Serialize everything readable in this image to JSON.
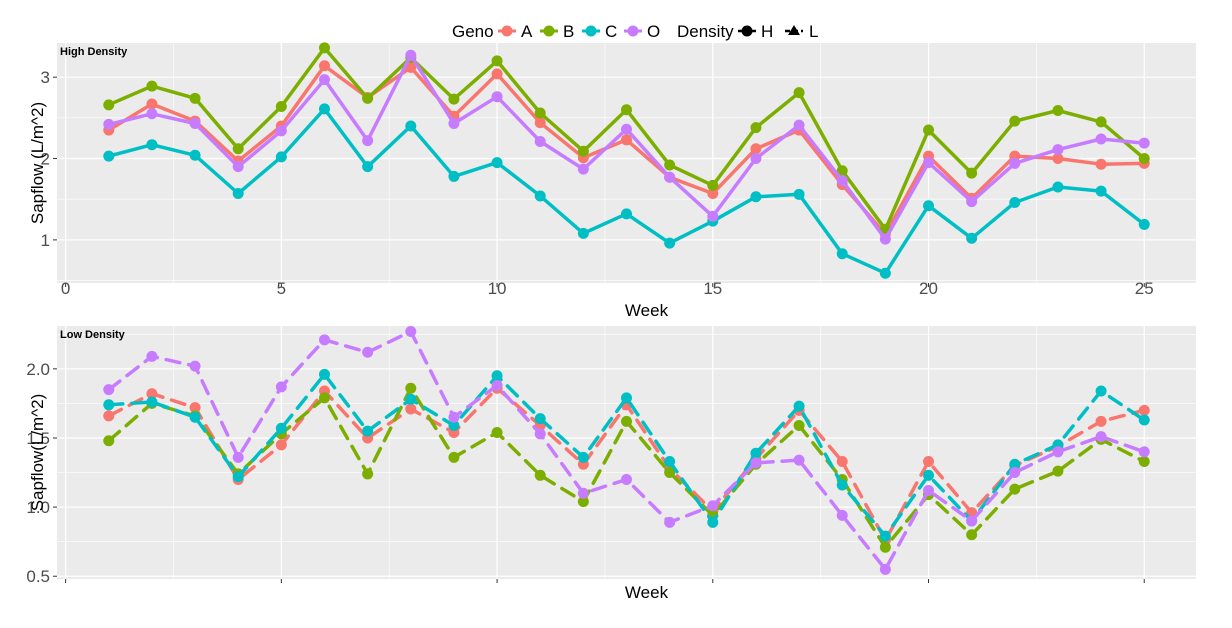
{
  "legend": {
    "geno_title": "Geno",
    "density_title": "Density",
    "items": [
      {
        "key": "A",
        "label": "A",
        "color": "#F8766D"
      },
      {
        "key": "B",
        "label": "B",
        "color": "#7CAE00"
      },
      {
        "key": "C",
        "label": "C",
        "color": "#00BFC4"
      },
      {
        "key": "O",
        "label": "O",
        "color": "#C77CFF"
      }
    ],
    "density_items": [
      {
        "label": "H",
        "linetype": "solid",
        "shape": "circle"
      },
      {
        "label": "L",
        "linetype": "dashed",
        "shape": "triangle"
      }
    ]
  },
  "chart_data": [
    {
      "type": "line",
      "title": "High Density",
      "xlabel": "Week",
      "ylabel": "Sapflow (L/m^2)",
      "xlim": [
        -0.2,
        26.2
      ],
      "ylim": [
        0.47,
        3.42
      ],
      "x_ticks": [
        0,
        5,
        10,
        15,
        20,
        25
      ],
      "y_ticks": [
        1,
        2,
        3
      ],
      "grid": true,
      "linetype": "solid",
      "x": [
        1,
        2,
        3,
        4,
        5,
        6,
        7,
        8,
        9,
        10,
        11,
        12,
        13,
        14,
        15,
        16,
        17,
        18,
        19,
        20,
        21,
        22,
        23,
        24,
        25
      ],
      "series": [
        {
          "name": "A",
          "color": "#F8766D",
          "values": [
            2.35,
            2.67,
            2.46,
            1.97,
            2.4,
            3.14,
            2.75,
            3.12,
            2.52,
            3.04,
            2.44,
            2.01,
            2.23,
            1.77,
            1.57,
            2.12,
            2.35,
            1.68,
            1.07,
            2.03,
            1.51,
            2.03,
            2.0,
            1.93,
            1.94
          ]
        },
        {
          "name": "B",
          "color": "#7CAE00",
          "values": [
            2.66,
            2.89,
            2.74,
            2.12,
            2.64,
            3.36,
            2.74,
            3.24,
            2.73,
            3.2,
            2.56,
            2.09,
            2.6,
            1.92,
            1.67,
            2.38,
            2.81,
            1.85,
            1.13,
            2.35,
            1.82,
            2.46,
            2.59,
            2.45,
            2.0
          ]
        },
        {
          "name": "C",
          "color": "#00BFC4",
          "values": [
            2.03,
            2.17,
            2.04,
            1.57,
            2.02,
            2.61,
            1.9,
            2.4,
            1.78,
            1.95,
            1.54,
            1.08,
            1.32,
            0.96,
            1.23,
            1.53,
            1.56,
            0.83,
            0.59,
            1.42,
            1.02,
            1.46,
            1.65,
            1.6,
            1.19
          ]
        },
        {
          "name": "O",
          "color": "#C77CFF",
          "values": [
            2.42,
            2.55,
            2.43,
            1.9,
            2.34,
            2.97,
            2.22,
            3.27,
            2.43,
            2.76,
            2.21,
            1.87,
            2.36,
            1.77,
            1.29,
            2.0,
            2.41,
            1.73,
            1.01,
            1.95,
            1.47,
            1.94,
            2.11,
            2.24,
            2.19
          ]
        }
      ]
    },
    {
      "type": "line",
      "title": "Low Density",
      "xlabel": "Week",
      "ylabel": "Sapflow(L/m^2)",
      "xlim": [
        -0.2,
        26.2
      ],
      "ylim": [
        0.48,
        2.31
      ],
      "x_ticks": [
        0,
        5,
        10,
        15,
        20,
        25
      ],
      "x_ticks_labeled": false,
      "y_ticks": [
        0.5,
        1.0,
        1.5,
        2.0
      ],
      "y_tick_labels": [
        "0.5",
        "1.0",
        "1.5",
        "2.0"
      ],
      "grid": true,
      "linetype": "dashed",
      "x": [
        1,
        2,
        3,
        4,
        5,
        6,
        7,
        8,
        9,
        10,
        11,
        12,
        13,
        14,
        15,
        16,
        17,
        18,
        19,
        20,
        21,
        22,
        23,
        24,
        25
      ],
      "series": [
        {
          "name": "A",
          "color": "#F8766D",
          "values": [
            1.66,
            1.82,
            1.72,
            1.2,
            1.45,
            1.84,
            1.5,
            1.71,
            1.54,
            1.86,
            1.59,
            1.31,
            1.74,
            1.28,
            0.97,
            1.35,
            1.7,
            1.33,
            0.76,
            1.33,
            0.96,
            1.3,
            1.44,
            1.62,
            1.7
          ]
        },
        {
          "name": "B",
          "color": "#7CAE00",
          "values": [
            1.48,
            1.75,
            1.66,
            1.24,
            1.53,
            1.79,
            1.24,
            1.86,
            1.36,
            1.54,
            1.23,
            1.04,
            1.62,
            1.25,
            0.94,
            1.31,
            1.59,
            1.2,
            0.71,
            1.09,
            0.8,
            1.13,
            1.26,
            1.49,
            1.33
          ]
        },
        {
          "name": "C",
          "color": "#00BFC4",
          "values": [
            1.74,
            1.76,
            1.65,
            1.22,
            1.57,
            1.96,
            1.55,
            1.78,
            1.59,
            1.95,
            1.64,
            1.36,
            1.79,
            1.33,
            0.89,
            1.39,
            1.73,
            1.16,
            0.79,
            1.23,
            0.9,
            1.31,
            1.45,
            1.84,
            1.63
          ]
        },
        {
          "name": "O",
          "color": "#C77CFF",
          "values": [
            1.85,
            2.09,
            2.02,
            1.36,
            1.87,
            2.21,
            2.12,
            2.27,
            1.65,
            1.88,
            1.53,
            1.1,
            1.2,
            0.89,
            1.01,
            1.32,
            1.34,
            0.94,
            0.55,
            1.12,
            0.9,
            1.25,
            1.4,
            1.51,
            1.4
          ]
        }
      ]
    }
  ]
}
